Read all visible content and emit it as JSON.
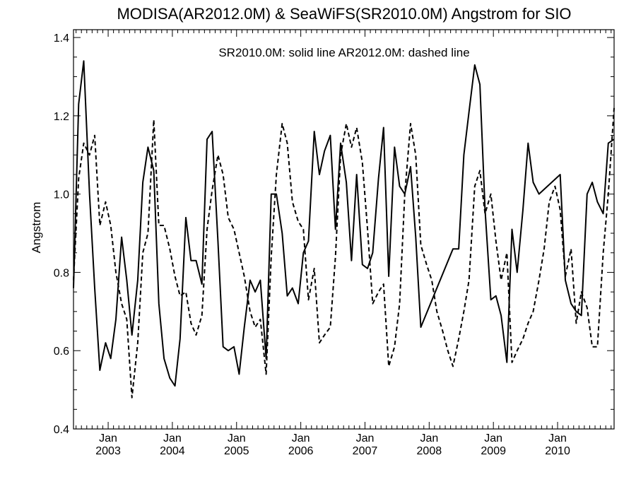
{
  "chart_data": {
    "type": "line",
    "title": "MODISA(AR2012.0M) & SeaWiFS(SR2010.0M)  Angstrom for SIO",
    "ylabel": "Angstrom",
    "xlabel": "",
    "legend_note": "SR2010.0M: solid line   AR2012.0M: dashed line",
    "ylim": [
      0.4,
      1.42
    ],
    "yticks": [
      "0.4",
      "0.6",
      "0.8",
      "1.0",
      "1.2",
      "1.4"
    ],
    "xlim_years": [
      2002.46,
      2010.88
    ],
    "xticks": [
      {
        "month": "Jan",
        "year": "2003"
      },
      {
        "month": "Jan",
        "year": "2004"
      },
      {
        "month": "Jan",
        "year": "2005"
      },
      {
        "month": "Jan",
        "year": "2006"
      },
      {
        "month": "Jan",
        "year": "2007"
      },
      {
        "month": "Jan",
        "year": "2008"
      },
      {
        "month": "Jan",
        "year": "2009"
      },
      {
        "month": "Jan",
        "year": "2010"
      }
    ],
    "series": [
      {
        "name": "SR2010.0M",
        "style": "solid",
        "color": "#000000",
        "x": [
          2002.46,
          2002.54,
          2002.62,
          2002.71,
          2002.79,
          2002.87,
          2002.96,
          2003.04,
          2003.12,
          2003.21,
          2003.29,
          2003.37,
          2003.46,
          2003.54,
          2003.62,
          2003.71,
          2003.79,
          2003.87,
          2003.96,
          2004.04,
          2004.12,
          2004.21,
          2004.29,
          2004.37,
          2004.46,
          2004.54,
          2004.62,
          2004.71,
          2004.79,
          2004.87,
          2004.96,
          2005.04,
          2005.12,
          2005.21,
          2005.29,
          2005.37,
          2005.46,
          2005.54,
          2005.62,
          2005.71,
          2005.79,
          2005.87,
          2005.96,
          2006.04,
          2006.12,
          2006.21,
          2006.29,
          2006.37,
          2006.46,
          2006.54,
          2006.62,
          2006.71,
          2006.79,
          2006.87,
          2006.96,
          2007.04,
          2007.12,
          2007.21,
          2007.29,
          2007.37,
          2007.46,
          2007.54,
          2007.62,
          2007.71,
          2007.79,
          2007.87,
          2008.37,
          2008.46,
          2008.54,
          2008.62,
          2008.71,
          2008.79,
          2008.87,
          2008.96,
          2009.04,
          2009.12,
          2009.21,
          2009.29,
          2009.37,
          2009.46,
          2009.54,
          2009.62,
          2009.71,
          2010.04,
          2010.12,
          2010.21,
          2010.29,
          2010.37,
          2010.46,
          2010.54,
          2010.62,
          2010.71,
          2010.79,
          2010.88
        ],
        "values": [
          0.76,
          1.23,
          1.34,
          1.0,
          0.76,
          0.55,
          0.62,
          0.58,
          0.68,
          0.89,
          0.78,
          0.64,
          0.78,
          1.03,
          1.12,
          1.06,
          0.72,
          0.58,
          0.53,
          0.51,
          0.63,
          0.94,
          0.83,
          0.83,
          0.77,
          1.14,
          1.16,
          0.88,
          0.61,
          0.6,
          0.61,
          0.54,
          0.66,
          0.78,
          0.75,
          0.78,
          0.58,
          1.0,
          1.0,
          0.9,
          0.74,
          0.76,
          0.72,
          0.85,
          0.88,
          1.16,
          1.05,
          1.11,
          1.15,
          0.91,
          1.13,
          1.03,
          0.83,
          1.05,
          0.82,
          0.81,
          0.85,
          1.04,
          1.17,
          0.79,
          1.12,
          1.02,
          1.0,
          1.07,
          0.89,
          0.66,
          0.86,
          0.86,
          1.1,
          1.21,
          1.33,
          1.28,
          0.96,
          0.73,
          0.74,
          0.69,
          0.57,
          0.91,
          0.8,
          0.96,
          1.13,
          1.03,
          1.0,
          1.05,
          0.78,
          0.72,
          0.7,
          0.69,
          1.0,
          1.03,
          0.98,
          0.95,
          1.13,
          1.14
        ]
      },
      {
        "name": "AR2012.0M",
        "style": "dashed",
        "color": "#000000",
        "x": [
          2002.46,
          2002.54,
          2002.62,
          2002.71,
          2002.79,
          2002.87,
          2002.96,
          2003.04,
          2003.12,
          2003.21,
          2003.29,
          2003.37,
          2003.46,
          2003.54,
          2003.62,
          2003.71,
          2003.79,
          2003.87,
          2003.96,
          2004.04,
          2004.12,
          2004.21,
          2004.29,
          2004.37,
          2004.46,
          2004.54,
          2004.62,
          2004.71,
          2004.79,
          2004.87,
          2004.96,
          2005.04,
          2005.12,
          2005.21,
          2005.29,
          2005.37,
          2005.46,
          2005.54,
          2005.62,
          2005.71,
          2005.79,
          2005.87,
          2005.96,
          2006.04,
          2006.12,
          2006.21,
          2006.29,
          2006.37,
          2006.46,
          2006.54,
          2006.62,
          2006.71,
          2006.79,
          2006.87,
          2006.96,
          2007.04,
          2007.12,
          2007.21,
          2007.29,
          2007.37,
          2007.46,
          2007.54,
          2007.62,
          2007.71,
          2007.79,
          2007.87,
          2007.96,
          2008.04,
          2008.12,
          2008.21,
          2008.29,
          2008.37,
          2008.46,
          2008.54,
          2008.62,
          2008.71,
          2008.79,
          2008.87,
          2008.96,
          2009.04,
          2009.12,
          2009.21,
          2009.29,
          2009.37,
          2009.46,
          2009.54,
          2009.62,
          2009.71,
          2009.79,
          2009.87,
          2009.96,
          2010.04,
          2010.12,
          2010.21,
          2010.29,
          2010.37,
          2010.46,
          2010.54,
          2010.62,
          2010.71,
          2010.79,
          2010.88
        ],
        "values": [
          0.78,
          1.04,
          1.13,
          1.1,
          1.15,
          0.92,
          0.98,
          0.92,
          0.8,
          0.72,
          0.68,
          0.48,
          0.62,
          0.85,
          0.9,
          1.19,
          0.92,
          0.92,
          0.86,
          0.79,
          0.74,
          0.75,
          0.67,
          0.64,
          0.69,
          0.91,
          1.01,
          1.1,
          1.05,
          0.94,
          0.91,
          0.85,
          0.79,
          0.7,
          0.66,
          0.68,
          0.54,
          0.84,
          1.05,
          1.18,
          1.13,
          0.98,
          0.93,
          0.91,
          0.73,
          0.81,
          0.62,
          0.64,
          0.66,
          0.84,
          1.1,
          1.18,
          1.12,
          1.17,
          1.08,
          0.91,
          0.72,
          0.75,
          0.77,
          0.56,
          0.61,
          0.72,
          1.0,
          1.18,
          1.1,
          0.87,
          0.82,
          0.78,
          0.7,
          0.65,
          0.6,
          0.56,
          0.63,
          0.7,
          0.78,
          1.02,
          1.06,
          0.95,
          1.0,
          0.88,
          0.78,
          0.85,
          0.57,
          0.6,
          0.63,
          0.67,
          0.7,
          0.78,
          0.86,
          0.98,
          1.02,
          0.96,
          0.79,
          0.86,
          0.67,
          0.75,
          0.71,
          0.61,
          0.61,
          0.85,
          1.0,
          1.22
        ]
      }
    ]
  }
}
